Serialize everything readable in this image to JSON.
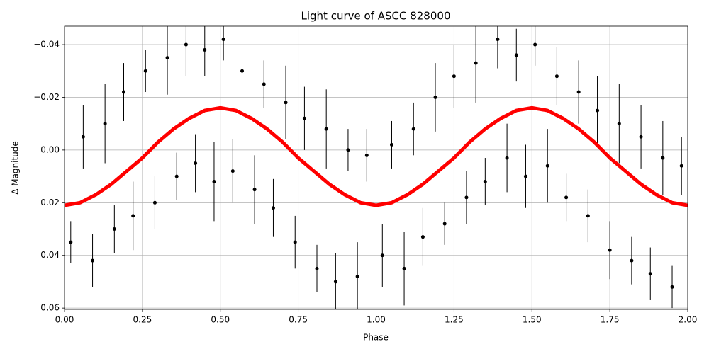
{
  "chart_data": {
    "type": "scatter",
    "title": "Light curve of ASCC 828000",
    "x_label": "Phase",
    "y_label": "Δ Magnitude",
    "xlim": [
      0,
      2
    ],
    "ylim": [
      0.0605,
      -0.047
    ],
    "xticks": [
      {
        "value": 0,
        "label": "0.00"
      },
      {
        "value": 0.25,
        "label": "0.25"
      },
      {
        "value": 0.5,
        "label": "0.50"
      },
      {
        "value": 0.75,
        "label": "0.75"
      },
      {
        "value": 1,
        "label": "1.00"
      },
      {
        "value": 1.25,
        "label": "1.25"
      },
      {
        "value": 1.5,
        "label": "1.50"
      },
      {
        "value": 1.75,
        "label": "1.75"
      },
      {
        "value": 2,
        "label": "2.00"
      }
    ],
    "yticks": [
      {
        "value": -0.04,
        "label": "−0.04"
      },
      {
        "value": -0.02,
        "label": "−0.02"
      },
      {
        "value": 0,
        "label": "0.00"
      },
      {
        "value": 0.02,
        "label": "0.02"
      },
      {
        "value": 0.04,
        "label": "0.04"
      },
      {
        "value": 0.06,
        "label": "0.06"
      }
    ],
    "grid": true,
    "points": {
      "color": "#000000",
      "x": [
        0.02,
        0.06,
        0.09,
        0.13,
        0.16,
        0.19,
        0.22,
        0.26,
        0.29,
        0.33,
        0.36,
        0.39,
        0.42,
        0.45,
        0.48,
        0.51,
        0.54,
        0.57,
        0.61,
        0.64,
        0.67,
        0.71,
        0.74,
        0.77,
        0.81,
        0.84,
        0.87,
        0.91,
        0.94,
        0.97,
        1.02,
        1.05,
        1.09,
        1.12,
        1.15,
        1.19,
        1.22,
        1.25,
        1.29,
        1.32,
        1.35,
        1.39,
        1.42,
        1.45,
        1.48,
        1.51,
        1.55,
        1.58,
        1.61,
        1.65,
        1.68,
        1.71,
        1.75,
        1.78,
        1.82,
        1.85,
        1.88,
        1.92,
        1.95,
        1.98
      ],
      "values": [
        0.035,
        -0.005,
        0.042,
        -0.01,
        0.03,
        -0.022,
        0.025,
        -0.03,
        0.02,
        -0.035,
        0.01,
        -0.04,
        0.005,
        -0.038,
        0.012,
        -0.042,
        0.008,
        -0.03,
        0.015,
        -0.025,
        0.022,
        -0.018,
        0.035,
        -0.012,
        0.045,
        -0.008,
        0.05,
        0.0,
        0.048,
        0.002,
        0.04,
        -0.002,
        0.045,
        -0.008,
        0.033,
        -0.02,
        0.028,
        -0.028,
        0.018,
        -0.033,
        0.012,
        -0.042,
        0.003,
        -0.036,
        0.01,
        -0.04,
        0.006,
        -0.028,
        0.018,
        -0.022,
        0.025,
        -0.015,
        0.038,
        -0.01,
        0.042,
        -0.005,
        0.047,
        0.003,
        0.052,
        0.006
      ],
      "errors": [
        0.008,
        0.012,
        0.01,
        0.015,
        0.009,
        0.011,
        0.013,
        0.008,
        0.01,
        0.014,
        0.009,
        0.012,
        0.011,
        0.01,
        0.015,
        0.008,
        0.012,
        0.01,
        0.013,
        0.009,
        0.011,
        0.014,
        0.01,
        0.012,
        0.009,
        0.015,
        0.011,
        0.008,
        0.013,
        0.01,
        0.012,
        0.009,
        0.014,
        0.01,
        0.011,
        0.013,
        0.008,
        0.012,
        0.01,
        0.015,
        0.009,
        0.011,
        0.013,
        0.01,
        0.012,
        0.008,
        0.014,
        0.011,
        0.009,
        0.012,
        0.01,
        0.013,
        0.011,
        0.015,
        0.009,
        0.012,
        0.01,
        0.014,
        0.008,
        0.011
      ]
    },
    "curve": {
      "color": "#ff0000",
      "x": [
        0,
        0.05,
        0.1,
        0.15,
        0.2,
        0.25,
        0.3,
        0.35,
        0.4,
        0.45,
        0.5,
        0.55,
        0.6,
        0.65,
        0.7,
        0.75,
        0.8,
        0.85,
        0.9,
        0.95,
        1,
        1.05,
        1.1,
        1.15,
        1.2,
        1.25,
        1.3,
        1.35,
        1.4,
        1.45,
        1.5,
        1.55,
        1.6,
        1.65,
        1.7,
        1.75,
        1.8,
        1.85,
        1.9,
        1.95,
        2
      ],
      "values": [
        0.021,
        0.02,
        0.017,
        0.013,
        0.008,
        0.003,
        -0.003,
        -0.008,
        -0.012,
        -0.015,
        -0.016,
        -0.015,
        -0.012,
        -0.008,
        -0.003,
        0.003,
        0.008,
        0.013,
        0.017,
        0.02,
        0.021,
        0.02,
        0.017,
        0.013,
        0.008,
        0.003,
        -0.003,
        -0.008,
        -0.012,
        -0.015,
        -0.016,
        -0.015,
        -0.012,
        -0.008,
        -0.003,
        0.003,
        0.008,
        0.013,
        0.017,
        0.02,
        0.021
      ]
    }
  }
}
